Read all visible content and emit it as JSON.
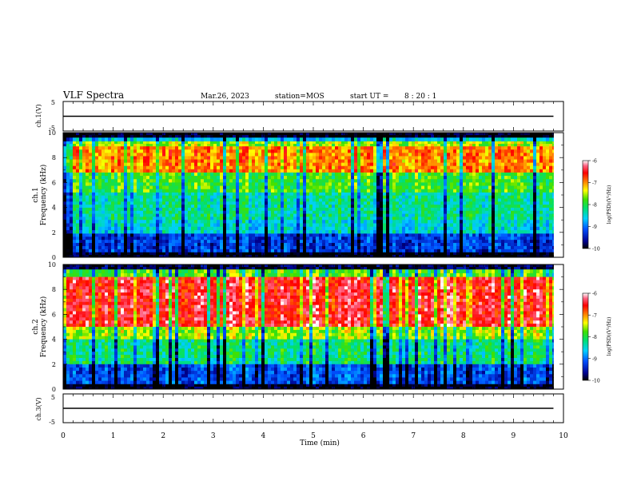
{
  "header": {
    "title": "VLF Spectra",
    "date": "Mar.26, 2023",
    "station": "station=MOS",
    "start_label": "start  UT =",
    "start_time": "8 : 20 : 1"
  },
  "chart_data": [
    {
      "type": "line",
      "name": "ch1-waveform-panel",
      "ylabel": "ch.1(V)",
      "ylim": [
        -5,
        5
      ],
      "yticks": [
        "5",
        "-5"
      ],
      "x": [
        0,
        9.8
      ],
      "values": [
        0,
        0
      ]
    },
    {
      "type": "heatmap",
      "name": "ch1-spectrogram",
      "ylabel": "ch.1\nFrequency (kHz)",
      "ylim": [
        0,
        10
      ],
      "yticks": [
        "0",
        "2",
        "4",
        "6",
        "8",
        "10"
      ],
      "xlim": [
        0,
        10
      ],
      "data_extent_min": 9.8,
      "band_intensity": [
        {
          "f": [
            9.6,
            10.0
          ],
          "level": -10.0
        },
        {
          "f": [
            9.3,
            9.6
          ],
          "level": -8.6
        },
        {
          "f": [
            8.9,
            9.3
          ],
          "level": -7.6
        },
        {
          "f": [
            6.8,
            8.9
          ],
          "level": -7.0
        },
        {
          "f": [
            5.2,
            6.8
          ],
          "level": -7.9
        },
        {
          "f": [
            3.0,
            5.2
          ],
          "level": -8.3
        },
        {
          "f": [
            1.9,
            3.0
          ],
          "level": -8.5
        },
        {
          "f": [
            0.4,
            1.9
          ],
          "level": -9.3
        },
        {
          "f": [
            0.0,
            0.4
          ],
          "level": -10.0
        }
      ],
      "colorbar": {
        "label": "log(PSD)(V²/Hz)",
        "ticks": [
          "-6",
          "-7",
          "-8",
          "-9",
          "-10"
        ],
        "range": [
          -10,
          -6
        ]
      }
    },
    {
      "type": "heatmap",
      "name": "ch2-spectrogram",
      "ylabel": "ch.2\nFrequency (kHz)",
      "ylim": [
        0,
        10
      ],
      "yticks": [
        "0",
        "2",
        "4",
        "6",
        "8",
        "10"
      ],
      "xlim": [
        0,
        10
      ],
      "data_extent_min": 9.8,
      "band_intensity": [
        {
          "f": [
            9.6,
            10.0
          ],
          "level": -9.8
        },
        {
          "f": [
            9.0,
            9.6
          ],
          "level": -7.8
        },
        {
          "f": [
            5.0,
            9.0
          ],
          "level": -6.5
        },
        {
          "f": [
            4.0,
            5.0
          ],
          "level": -7.6
        },
        {
          "f": [
            2.0,
            4.0
          ],
          "level": -8.2
        },
        {
          "f": [
            0.4,
            2.0
          ],
          "level": -9.2
        },
        {
          "f": [
            0.0,
            0.4
          ],
          "level": -10.0
        }
      ],
      "colorbar": {
        "label": "log(PSD)(V²/Hz)",
        "ticks": [
          "-6",
          "-7",
          "-8",
          "-9",
          "-10"
        ],
        "range": [
          -10,
          -6
        ]
      }
    },
    {
      "type": "line",
      "name": "ch3-waveform-panel",
      "ylabel": "ch.3(V)",
      "ylim": [
        -5,
        5
      ],
      "yticks": [
        "5",
        "-5"
      ],
      "x": [
        0,
        9.8
      ],
      "values": [
        0,
        0
      ],
      "xlabel": "Time (min)",
      "xticks": [
        "0",
        "1",
        "2",
        "3",
        "4",
        "5",
        "6",
        "7",
        "8",
        "9",
        "10"
      ],
      "xlim": [
        0,
        10
      ]
    }
  ],
  "colors": {
    "low": "#000080",
    "mid_low": "#00c8ff",
    "mid": "#30d030",
    "mid_high": "#ffff00",
    "high": "#ff2020"
  }
}
